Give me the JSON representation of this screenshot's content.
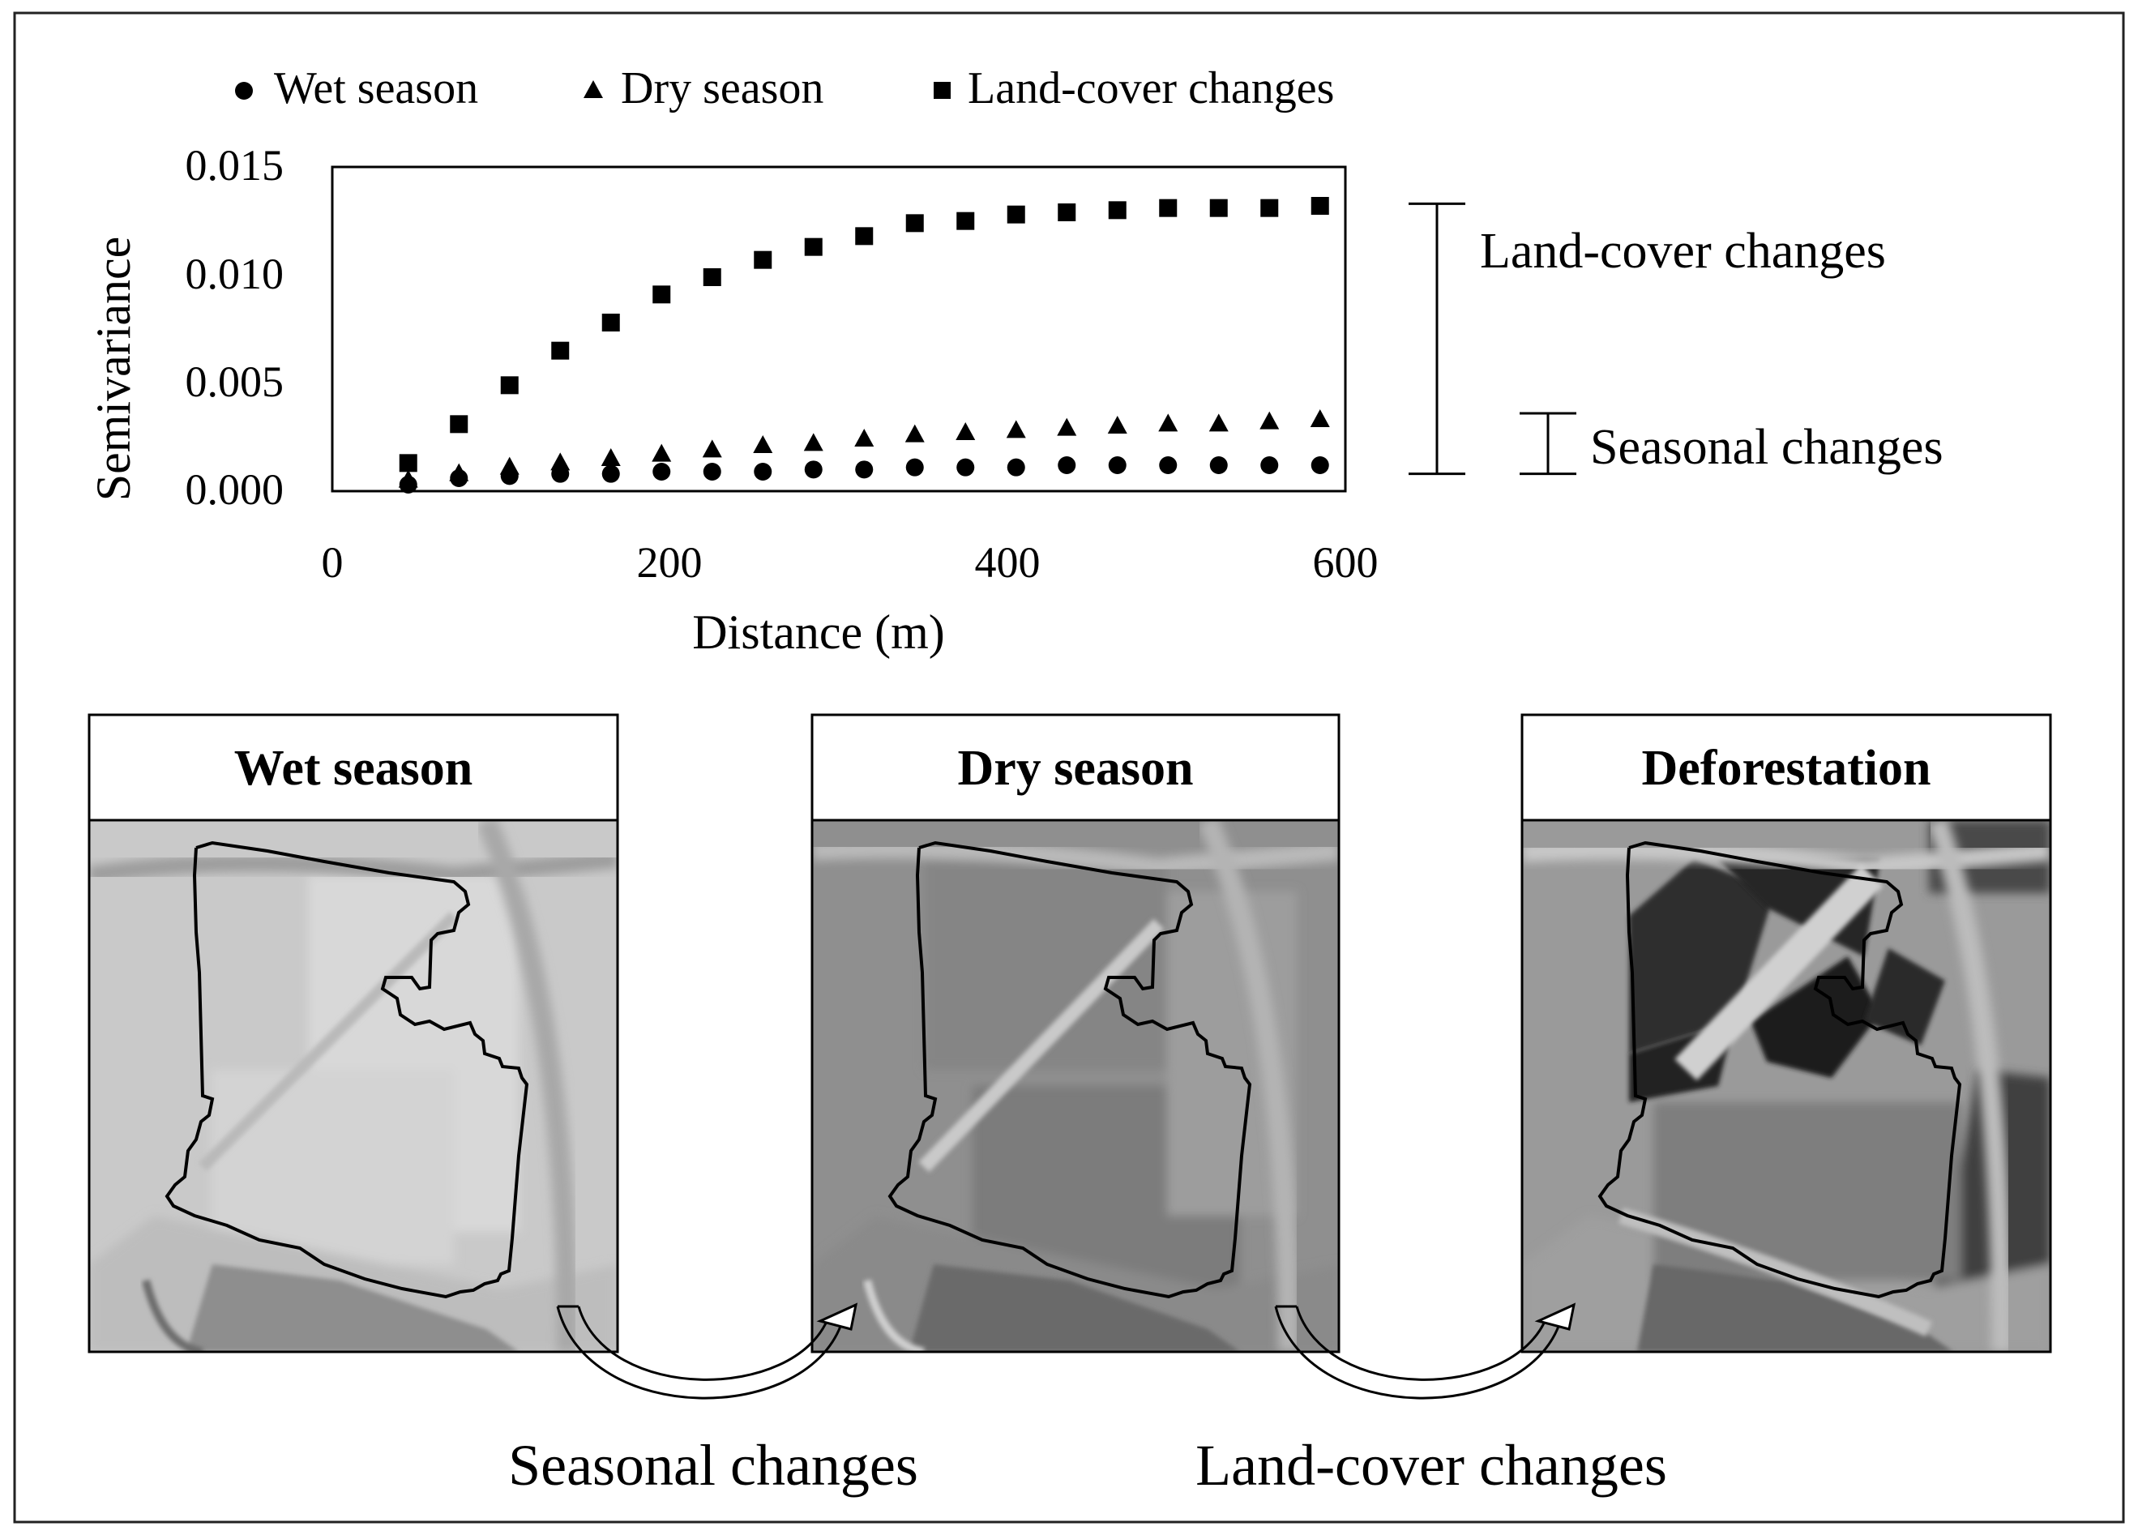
{
  "chart_data": {
    "type": "scatter",
    "xlabel": "Distance (m)",
    "ylabel": "Semivariance",
    "xlim": [
      0,
      600
    ],
    "ylim": [
      0,
      0.015
    ],
    "x_ticks": [
      "0",
      "200",
      "400",
      "600"
    ],
    "y_ticks": [
      "0.000",
      "0.005",
      "0.010",
      "0.015"
    ],
    "legend_position": "top",
    "grid": false,
    "x": [
      45,
      75,
      105,
      135,
      165,
      195,
      225,
      255,
      285,
      315,
      345,
      375,
      405,
      435,
      465,
      495,
      525,
      555,
      585
    ],
    "series": [
      {
        "name": "Wet season",
        "marker": "circle",
        "values": [
          0.0003,
          0.0006,
          0.0007,
          0.0008,
          0.0008,
          0.0009,
          0.0009,
          0.0009,
          0.001,
          0.001,
          0.0011,
          0.0011,
          0.0011,
          0.0012,
          0.0012,
          0.0012,
          0.0012,
          0.0012,
          0.0012
        ]
      },
      {
        "name": "Dry season",
        "marker": "triangle",
        "values": [
          0.0005,
          0.0008,
          0.0011,
          0.0013,
          0.0015,
          0.0017,
          0.0019,
          0.0021,
          0.0022,
          0.0024,
          0.0026,
          0.0027,
          0.0028,
          0.0029,
          0.003,
          0.0031,
          0.0031,
          0.0032,
          0.0033
        ]
      },
      {
        "name": "Land-cover changes",
        "marker": "square",
        "values": [
          0.0013,
          0.0031,
          0.0049,
          0.0065,
          0.0078,
          0.0091,
          0.0099,
          0.0107,
          0.0113,
          0.0118,
          0.0124,
          0.0125,
          0.0128,
          0.0129,
          0.013,
          0.0131,
          0.0131,
          0.0131,
          0.0132
        ]
      }
    ],
    "brackets": [
      {
        "label": "Land-cover changes",
        "from": 0.0008,
        "to": 0.0133
      },
      {
        "label": "Seasonal changes",
        "from": 0.0008,
        "to": 0.0036
      }
    ]
  },
  "panels": [
    {
      "title": "Wet season"
    },
    {
      "title": "Dry season"
    },
    {
      "title": "Deforestation"
    }
  ],
  "arrows": [
    {
      "label": "Seasonal changes"
    },
    {
      "label": "Land-cover changes"
    }
  ],
  "colors": {
    "marker": "#000000",
    "axis": "#000000"
  }
}
